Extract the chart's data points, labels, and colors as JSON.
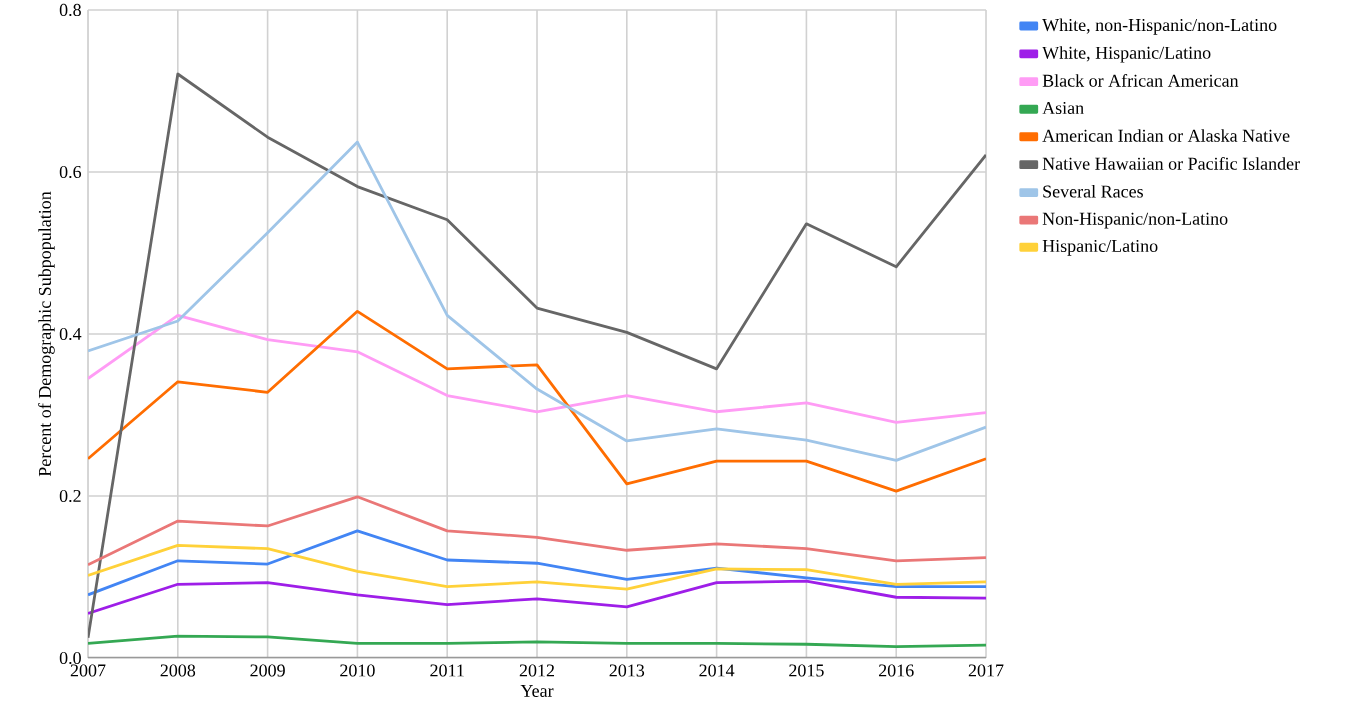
{
  "chart_data": {
    "type": "line",
    "xlabel": "Year",
    "ylabel": "Percent of Demographic Subpopulation",
    "x": [
      2007,
      2008,
      2009,
      2010,
      2011,
      2012,
      2013,
      2014,
      2015,
      2016,
      2017
    ],
    "xlim": [
      2007,
      2017
    ],
    "xticks": [
      2007,
      2008,
      2009,
      2010,
      2011,
      2012,
      2013,
      2014,
      2015,
      2016,
      2017
    ],
    "ylim": [
      0,
      0.8
    ],
    "yticks": [
      {
        "value": 0,
        "label": "0.0"
      },
      0.2,
      0.4,
      0.6,
      0.8
    ],
    "grid": true,
    "legend": "right",
    "marker": "none",
    "line_style": "solid",
    "series": [
      {
        "name": "White, non-Hispanic/non-Latino",
        "color": "#4285f4",
        "values": [
          0.078,
          0.12,
          0.116,
          0.157,
          0.121,
          0.117,
          0.097,
          0.111,
          0.099,
          0.088,
          0.088
        ]
      },
      {
        "name": "White, Hispanic/Latino",
        "color": "#9e1ee8",
        "values": [
          0.055,
          0.091,
          0.093,
          0.078,
          0.066,
          0.073,
          0.063,
          0.093,
          0.095,
          0.075,
          0.074
        ]
      },
      {
        "name": "Black or African American",
        "color": "#ff9cf5",
        "values": [
          0.345,
          0.423,
          0.393,
          0.378,
          0.324,
          0.304,
          0.324,
          0.304,
          0.315,
          0.291,
          0.303
        ]
      },
      {
        "name": "Asian",
        "color": "#34a853",
        "values": [
          0.018,
          0.027,
          0.026,
          0.018,
          0.018,
          0.02,
          0.018,
          0.018,
          0.017,
          0.014,
          0.016
        ]
      },
      {
        "name": "American Indian or Alaska Native",
        "color": "#ff6d01",
        "values": [
          0.246,
          0.341,
          0.328,
          0.428,
          0.357,
          0.362,
          0.215,
          0.243,
          0.243,
          0.206,
          0.246
        ]
      },
      {
        "name": "Native Hawaiian or Pacific Islander",
        "color": "#666666",
        "values": [
          0.025,
          0.721,
          0.643,
          0.582,
          0.541,
          0.432,
          0.402,
          0.357,
          0.536,
          0.483,
          0.621
        ]
      },
      {
        "name": "Several Races",
        "color": "#9fc5e8",
        "values": [
          0.379,
          0.416,
          0.525,
          0.637,
          0.423,
          0.332,
          0.268,
          0.283,
          0.269,
          0.244,
          0.285
        ]
      },
      {
        "name": "Non-Hispanic/non-Latino",
        "color": "#ea7777",
        "values": [
          0.115,
          0.169,
          0.163,
          0.199,
          0.157,
          0.149,
          0.133,
          0.141,
          0.135,
          0.12,
          0.124
        ]
      },
      {
        "name": "Hispanic/Latino",
        "color": "#ffd139",
        "values": [
          0.102,
          0.139,
          0.135,
          0.107,
          0.088,
          0.094,
          0.085,
          0.11,
          0.109,
          0.091,
          0.094
        ]
      }
    ]
  }
}
